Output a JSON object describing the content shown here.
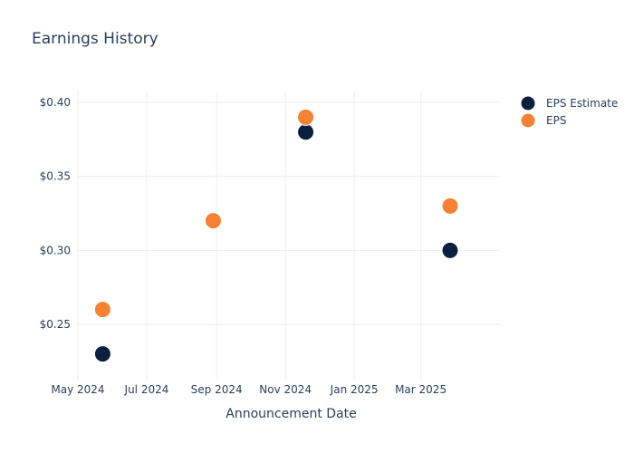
{
  "chart_data": {
    "type": "scatter",
    "title": "Earnings History",
    "xlabel": "Announcement Date",
    "ylabel": "",
    "x_ticks": [
      "2024-05-01",
      "2024-07-01",
      "2024-09-01",
      "2024-11-01",
      "2025-01-01",
      "2025-03-01"
    ],
    "x_tick_labels": [
      "May 2024",
      "Jul 2024",
      "Sep 2024",
      "Nov 2024",
      "Jan 2025",
      "Mar 2025"
    ],
    "xlim": [
      "2024-05-01",
      "2025-05-11"
    ],
    "y_ticks": [
      0.25,
      0.3,
      0.35,
      0.4
    ],
    "y_tick_labels": [
      "$0.25",
      "$0.30",
      "$0.35",
      "$0.40"
    ],
    "ylim": [
      0.212,
      0.408
    ],
    "grid": true,
    "legend_position": "top-right",
    "series": [
      {
        "name": "EPS Estimate",
        "color": "#0b1f3f",
        "points": [
          {
            "x": "2024-05-23",
            "y": 0.23
          },
          {
            "x": "2024-08-29",
            "y": 0.32
          },
          {
            "x": "2024-11-19",
            "y": 0.38
          },
          {
            "x": "2025-03-27",
            "y": 0.3
          }
        ]
      },
      {
        "name": "EPS",
        "color": "#f58233",
        "points": [
          {
            "x": "2024-05-23",
            "y": 0.26
          },
          {
            "x": "2024-08-29",
            "y": 0.32
          },
          {
            "x": "2024-11-19",
            "y": 0.39
          },
          {
            "x": "2025-03-27",
            "y": 0.33
          }
        ]
      }
    ]
  }
}
